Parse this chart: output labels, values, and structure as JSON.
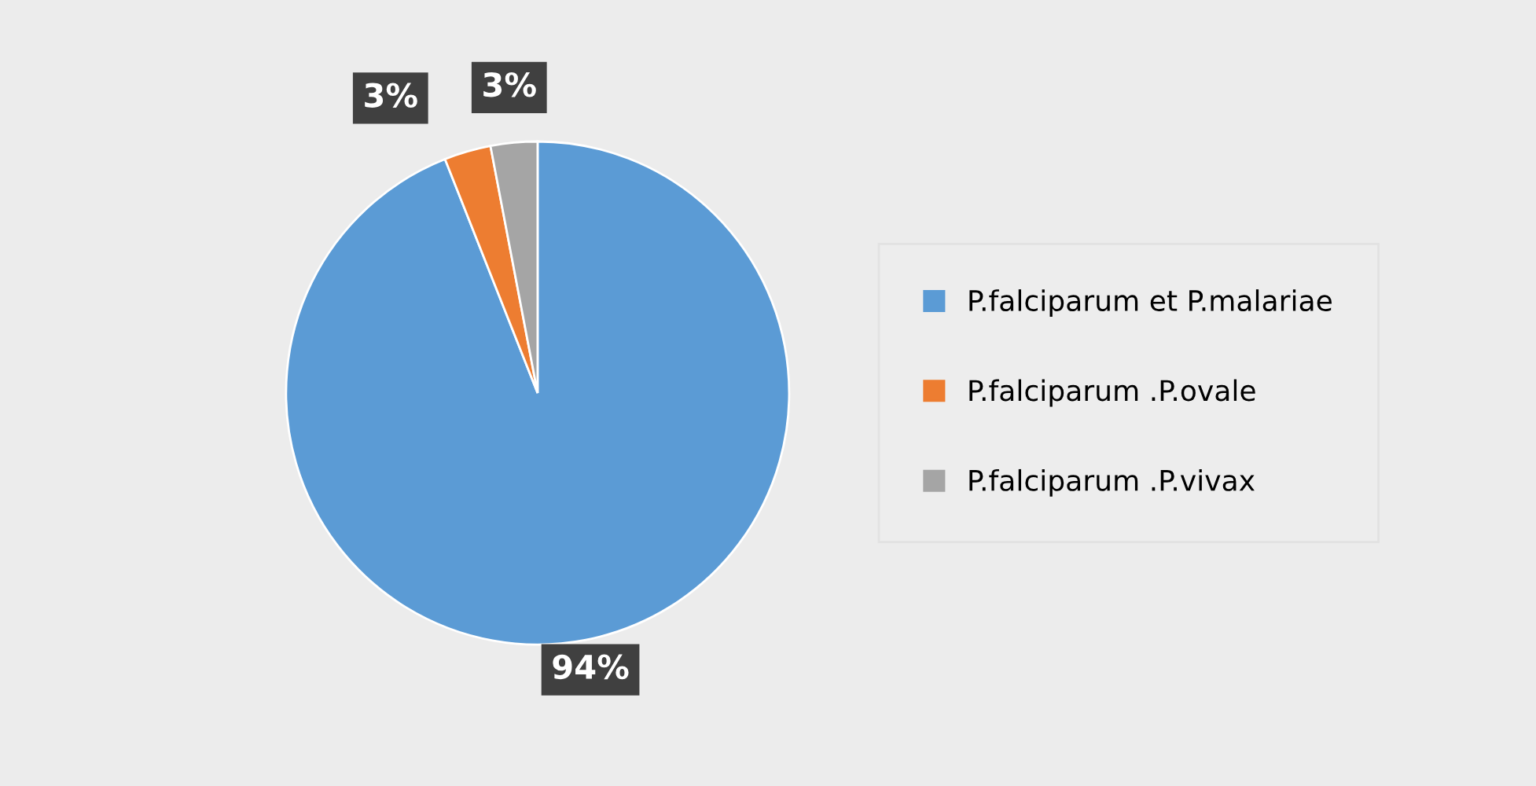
{
  "chart_data": {
    "type": "pie",
    "categories": [
      "P.falciparum et P.malariae",
      "P.falciparum .P.ovale",
      "P.falciparum .P.vivax"
    ],
    "values": [
      94,
      3,
      3
    ],
    "colors": [
      "#5b9bd5",
      "#ed7d31",
      "#a5a5a5"
    ],
    "value_labels": [
      "94%",
      "3%",
      "3%"
    ],
    "legend": "right"
  }
}
